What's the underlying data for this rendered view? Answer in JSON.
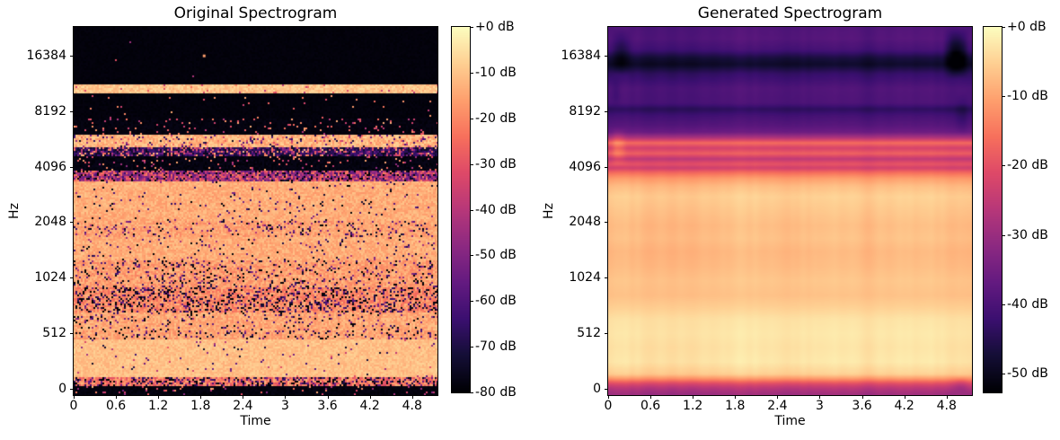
{
  "colormap": {
    "name": "magma",
    "anchors": [
      "#000004",
      "#140e36",
      "#3b0f70",
      "#641a80",
      "#8c2981",
      "#b73779",
      "#de4968",
      "#f7705c",
      "#fe9f6d",
      "#fecf92",
      "#fcfdbf"
    ]
  },
  "chart_data": [
    {
      "id": "original",
      "type": "heatmap",
      "style": "speckled",
      "title": "Original Spectrogram",
      "xlabel": "Time",
      "ylabel": "Hz",
      "x_ticks": {
        "labels": [
          "0",
          "0.6",
          "1.2",
          "1.8",
          "2.4",
          "3",
          "3.6",
          "4.2",
          "4.8"
        ],
        "values": [
          0,
          0.6,
          1.2,
          1.8,
          2.4,
          3,
          3.6,
          4.2,
          4.8
        ]
      },
      "x_range": [
        0,
        5.16
      ],
      "y_ticks": {
        "labels": [
          "16384",
          "8192",
          "4096",
          "2048",
          "1024",
          "512",
          "0"
        ],
        "fracs": [
          0.078,
          0.2288,
          0.3795,
          0.5302,
          0.681,
          0.8317,
          0.9824
        ]
      },
      "y_scale": "log-frequency",
      "colorbar": {
        "labels": [
          "+0 dB",
          "-10 dB",
          "-20 dB",
          "-30 dB",
          "-40 dB",
          "-50 dB",
          "-60 dB",
          "-70 dB",
          "-80 dB"
        ],
        "values_db": [
          0,
          -10,
          -20,
          -30,
          -40,
          -50,
          -60,
          -70,
          -80
        ],
        "vmax_db": 0,
        "vmin_db": -80
      },
      "bands": [
        {
          "from": 0.0,
          "to": 0.155,
          "base": 0.015,
          "noise": 0.008,
          "speckle_density": 0.0006,
          "speckle_value": 0.55,
          "speckle_spread": 0.15
        },
        {
          "from": 0.155,
          "to": 0.179,
          "base": 0.88,
          "noise": 0.055,
          "speckle_density": 0.03,
          "speckle_value": 0.62,
          "speckle_spread": 0.12
        },
        {
          "from": 0.179,
          "to": 0.244,
          "base": 0.015,
          "noise": 0.01,
          "speckle_density": 0.012,
          "speckle_value": 0.66,
          "speckle_spread": 0.16
        },
        {
          "from": 0.244,
          "to": 0.288,
          "base": 0.022,
          "noise": 0.015,
          "speckle_density": 0.055,
          "speckle_value": 0.66,
          "speckle_spread": 0.18
        },
        {
          "from": 0.288,
          "to": 0.326,
          "base": 0.85,
          "noise": 0.07,
          "speckle_density": 0.11,
          "speckle_value": 0.38,
          "speckle_spread": 0.34
        },
        {
          "from": 0.326,
          "to": 0.349,
          "base": 0.14,
          "noise": 0.1,
          "speckle_density": 0.32,
          "speckle_value": 0.58,
          "speckle_spread": 0.3
        },
        {
          "from": 0.349,
          "to": 0.39,
          "base": 0.025,
          "noise": 0.02,
          "speckle_density": 0.07,
          "speckle_value": 0.62,
          "speckle_spread": 0.22
        },
        {
          "from": 0.39,
          "to": 0.416,
          "base": 0.52,
          "noise": 0.24,
          "speckle_density": 0.3,
          "speckle_value": 0.16,
          "speckle_spread": 0.3
        },
        {
          "from": 0.416,
          "to": 0.524,
          "base": 0.83,
          "noise": 0.05,
          "speckle_density": 0.035,
          "speckle_value": 0.18,
          "speckle_spread": 0.26
        },
        {
          "from": 0.524,
          "to": 0.566,
          "base": 0.81,
          "noise": 0.06,
          "speckle_density": 0.12,
          "speckle_value": 0.22,
          "speckle_spread": 0.3
        },
        {
          "from": 0.566,
          "to": 0.634,
          "base": 0.83,
          "noise": 0.05,
          "speckle_density": 0.05,
          "speckle_value": 0.22,
          "speckle_spread": 0.3
        },
        {
          "from": 0.634,
          "to": 0.707,
          "base": 0.8,
          "noise": 0.07,
          "speckle_density": 0.13,
          "speckle_value": 0.16,
          "speckle_spread": 0.3
        },
        {
          "from": 0.707,
          "to": 0.773,
          "base": 0.76,
          "noise": 0.09,
          "speckle_density": 0.27,
          "speckle_value": 0.1,
          "speckle_spread": 0.26
        },
        {
          "from": 0.773,
          "to": 0.822,
          "base": 0.82,
          "noise": 0.06,
          "speckle_density": 0.09,
          "speckle_value": 0.16,
          "speckle_spread": 0.3
        },
        {
          "from": 0.822,
          "to": 0.846,
          "base": 0.81,
          "noise": 0.06,
          "speckle_density": 0.14,
          "speckle_value": 0.14,
          "speckle_spread": 0.3
        },
        {
          "from": 0.846,
          "to": 0.951,
          "base": 0.87,
          "noise": 0.04,
          "speckle_density": 0.02,
          "speckle_value": 0.35,
          "speckle_spread": 0.3
        },
        {
          "from": 0.951,
          "to": 0.972,
          "base": 0.72,
          "noise": 0.13,
          "speckle_density": 0.32,
          "speckle_value": 0.1,
          "speckle_spread": 0.26
        },
        {
          "from": 0.972,
          "to": 1.001,
          "base": 0.02,
          "noise": 0.015,
          "speckle_density": 0.05,
          "speckle_value": 0.6,
          "speckle_spread": 0.25
        }
      ],
      "dots": [
        {
          "x": 0.355,
          "y": 0.075,
          "value": 0.8
        }
      ]
    },
    {
      "id": "generated",
      "type": "heatmap",
      "style": "smooth",
      "title": "Generated Spectrogram",
      "xlabel": "Time",
      "ylabel": "Hz",
      "x_ticks": {
        "labels": [
          "0",
          "0.6",
          "1.2",
          "1.8",
          "2.4",
          "3",
          "3.6",
          "4.2",
          "4.8"
        ],
        "values": [
          0,
          0.6,
          1.2,
          1.8,
          2.4,
          3,
          3.6,
          4.2,
          4.8
        ]
      },
      "x_range": [
        0,
        5.16
      ],
      "y_ticks": {
        "labels": [
          "16384",
          "8192",
          "4096",
          "2048",
          "1024",
          "512",
          "0"
        ],
        "fracs": [
          0.078,
          0.2288,
          0.3795,
          0.5302,
          0.681,
          0.8317,
          0.9824
        ]
      },
      "y_scale": "log-frequency",
      "colorbar": {
        "labels": [
          "+0 dB",
          "-10 dB",
          "-20 dB",
          "-30 dB",
          "-40 dB",
          "-50 dB"
        ],
        "values_db": [
          0,
          -10,
          -20,
          -30,
          -40,
          -50
        ],
        "vmax_db": 0,
        "vmin_db": -52.7
      },
      "profile": [
        [
          0.0,
          0.25
        ],
        [
          0.03,
          0.26
        ],
        [
          0.06,
          0.22
        ],
        [
          0.082,
          0.11
        ],
        [
          0.1,
          0.07
        ],
        [
          0.125,
          0.18
        ],
        [
          0.165,
          0.25
        ],
        [
          0.205,
          0.24
        ],
        [
          0.222,
          0.16
        ],
        [
          0.24,
          0.22
        ],
        [
          0.268,
          0.27
        ],
        [
          0.285,
          0.32
        ],
        [
          0.3,
          0.48
        ],
        [
          0.314,
          0.69
        ],
        [
          0.328,
          0.57
        ],
        [
          0.343,
          0.66
        ],
        [
          0.358,
          0.52
        ],
        [
          0.371,
          0.63
        ],
        [
          0.383,
          0.56
        ],
        [
          0.394,
          0.68
        ],
        [
          0.41,
          0.79
        ],
        [
          0.432,
          0.86
        ],
        [
          0.46,
          0.9
        ],
        [
          0.5,
          0.88
        ],
        [
          0.54,
          0.86
        ],
        [
          0.575,
          0.87
        ],
        [
          0.61,
          0.85
        ],
        [
          0.65,
          0.86
        ],
        [
          0.69,
          0.88
        ],
        [
          0.73,
          0.87
        ],
        [
          0.762,
          0.9
        ],
        [
          0.795,
          0.94
        ],
        [
          0.835,
          0.95
        ],
        [
          0.872,
          0.94
        ],
        [
          0.912,
          0.95
        ],
        [
          0.945,
          0.9
        ],
        [
          0.958,
          0.78
        ],
        [
          0.968,
          0.64
        ],
        [
          0.978,
          0.54
        ],
        [
          0.988,
          0.48
        ],
        [
          1.0,
          0.44
        ]
      ],
      "blobs": [
        {
          "x0": 0.0,
          "x1": 0.06,
          "y0": 0.0,
          "y1": 0.13,
          "dv": -0.1
        },
        {
          "x0": 0.93,
          "x1": 1.0,
          "y0": 0.0,
          "y1": 0.14,
          "dv": -0.18
        },
        {
          "x0": 0.0,
          "x1": 0.04,
          "y0": 0.27,
          "y1": 0.38,
          "dv": 0.1
        },
        {
          "x0": 0.96,
          "x1": 1.0,
          "y0": 0.18,
          "y1": 0.3,
          "dv": -0.05
        },
        {
          "x0": 0.0,
          "x1": 0.03,
          "y0": 0.13,
          "y1": 0.22,
          "dv": -0.04
        },
        {
          "x0": 0.95,
          "x1": 1.0,
          "y0": 0.95,
          "y1": 1.0,
          "dv": -0.06
        }
      ]
    }
  ]
}
